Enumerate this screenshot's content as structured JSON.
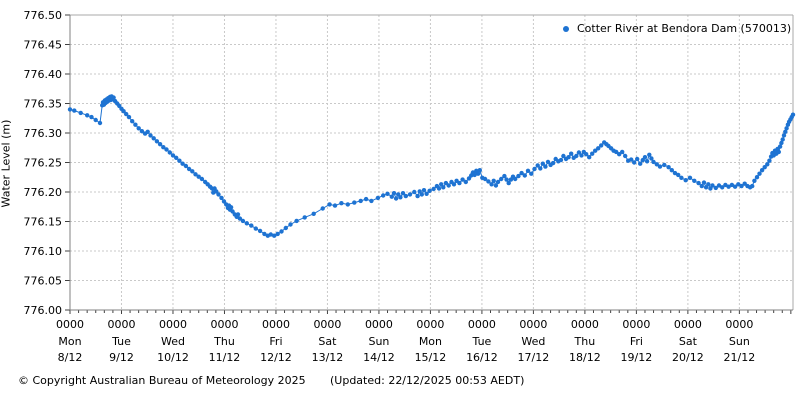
{
  "footer": {
    "copyright": "© Copyright Australian Bureau of Meteorology 2025",
    "updated": "(Updated: 22/12/2025 00:53 AEDT)"
  },
  "chart_data": {
    "type": "line",
    "title": "",
    "legend_label": "Cotter River at Bendora Dam (570013)",
    "legend_position": "top-right-inside",
    "ylabel": "Water Level (m)",
    "xlabel": "",
    "ylim": [
      776.0,
      776.5
    ],
    "ytick_step": 0.05,
    "grid": "on",
    "x_hours_max": 337,
    "x_minor_tick_hours": 4,
    "colors": {
      "series": "#1e73d2",
      "grid": "#c9c9c9",
      "axis": "#808080",
      "border": "#a8a8a8",
      "tick": "#404040"
    },
    "x_day_ticks": [
      {
        "time": "0000",
        "day": "Mon",
        "date": "8/12"
      },
      {
        "time": "0000",
        "day": "Tue",
        "date": "9/12"
      },
      {
        "time": "0000",
        "day": "Wed",
        "date": "10/12"
      },
      {
        "time": "0000",
        "day": "Thu",
        "date": "11/12"
      },
      {
        "time": "0000",
        "day": "Fri",
        "date": "12/12"
      },
      {
        "time": "0000",
        "day": "Sat",
        "date": "13/12"
      },
      {
        "time": "0000",
        "day": "Sun",
        "date": "14/12"
      },
      {
        "time": "0000",
        "day": "Mon",
        "date": "15/12"
      },
      {
        "time": "0000",
        "day": "Tue",
        "date": "16/12"
      },
      {
        "time": "0000",
        "day": "Wed",
        "date": "17/12"
      },
      {
        "time": "0000",
        "day": "Thu",
        "date": "18/12"
      },
      {
        "time": "0000",
        "day": "Fri",
        "date": "19/12"
      },
      {
        "time": "0000",
        "day": "Sat",
        "date": "20/12"
      },
      {
        "time": "0000",
        "day": "Sun",
        "date": "21/12"
      }
    ],
    "series": [
      {
        "name": "Cotter River at Bendora Dam (570013)",
        "points": [
          [
            0,
            776.34
          ],
          [
            2,
            776.338
          ],
          [
            5,
            776.334
          ],
          [
            8,
            776.33
          ],
          [
            10,
            776.327
          ],
          [
            12,
            776.322
          ],
          [
            14,
            776.317
          ],
          [
            15,
            776.347
          ],
          [
            15.4,
            776.352
          ],
          [
            15.8,
            776.348
          ],
          [
            16.2,
            776.355
          ],
          [
            16.6,
            776.351
          ],
          [
            17,
            776.357
          ],
          [
            17.4,
            776.353
          ],
          [
            17.8,
            776.359
          ],
          [
            18.2,
            776.355
          ],
          [
            18.6,
            776.361
          ],
          [
            19,
            776.356
          ],
          [
            19.4,
            776.362
          ],
          [
            19.8,
            776.357
          ],
          [
            20.3,
            776.36
          ],
          [
            21,
            776.354
          ],
          [
            22,
            776.35
          ],
          [
            23,
            776.346
          ],
          [
            24,
            776.341
          ],
          [
            25,
            776.337
          ],
          [
            26.2,
            776.332
          ],
          [
            27.5,
            776.327
          ],
          [
            29,
            776.32
          ],
          [
            30.5,
            776.314
          ],
          [
            32,
            776.308
          ],
          [
            33.5,
            776.303
          ],
          [
            35,
            776.299
          ],
          [
            36.2,
            776.302
          ],
          [
            37.5,
            776.296
          ],
          [
            39,
            776.291
          ],
          [
            40.5,
            776.286
          ],
          [
            42,
            776.281
          ],
          [
            43.5,
            776.276
          ],
          [
            45,
            776.272
          ],
          [
            46.5,
            776.267
          ],
          [
            48,
            776.262
          ],
          [
            49.5,
            776.258
          ],
          [
            51,
            776.253
          ],
          [
            52.5,
            776.248
          ],
          [
            54,
            776.244
          ],
          [
            55.5,
            776.239
          ],
          [
            57,
            776.235
          ],
          [
            58.5,
            776.23
          ],
          [
            60,
            776.226
          ],
          [
            61.5,
            776.222
          ],
          [
            63,
            776.217
          ],
          [
            64.2,
            776.213
          ],
          [
            65.3,
            776.209
          ],
          [
            66.2,
            776.206
          ],
          [
            66.8,
            776.199
          ],
          [
            67.4,
            776.206
          ],
          [
            68.2,
            776.201
          ],
          [
            69.2,
            776.196
          ],
          [
            70.6,
            776.19
          ],
          [
            71.8,
            776.184
          ],
          [
            72.8,
            776.179
          ],
          [
            73.6,
            776.173
          ],
          [
            74.1,
            776.177
          ],
          [
            74.6,
            776.17
          ],
          [
            75.1,
            776.174
          ],
          [
            75.8,
            776.167
          ],
          [
            76.8,
            776.162
          ],
          [
            77.7,
            776.158
          ],
          [
            78.3,
            776.162
          ],
          [
            79.2,
            776.155
          ],
          [
            80.6,
            776.151
          ],
          [
            82.4,
            776.147
          ],
          [
            84.5,
            776.143
          ],
          [
            86.6,
            776.138
          ],
          [
            88.6,
            776.134
          ],
          [
            90.6,
            776.129
          ],
          [
            92.2,
            776.126
          ],
          [
            93.6,
            776.128
          ],
          [
            95.2,
            776.126
          ],
          [
            96.8,
            776.129
          ],
          [
            98.6,
            776.133
          ],
          [
            100.6,
            776.139
          ],
          [
            102.8,
            776.145
          ],
          [
            105.6,
            776.151
          ],
          [
            109.4,
            776.157
          ],
          [
            113.6,
            776.163
          ],
          [
            117.8,
            776.172
          ],
          [
            121,
            776.179
          ],
          [
            123.5,
            776.177
          ],
          [
            126.5,
            776.181
          ],
          [
            129.5,
            776.179
          ],
          [
            132.5,
            776.182
          ],
          [
            135.5,
            776.185
          ],
          [
            138,
            776.188
          ],
          [
            140.5,
            776.185
          ],
          [
            143.5,
            776.19
          ],
          [
            146,
            776.194
          ],
          [
            148,
            776.197
          ],
          [
            150,
            776.192
          ],
          [
            151,
            776.198
          ],
          [
            152,
            776.189
          ],
          [
            153,
            776.196
          ],
          [
            154,
            776.191
          ],
          [
            155.2,
            776.198
          ],
          [
            156.5,
            776.193
          ],
          [
            158.5,
            776.196
          ],
          [
            160.5,
            776.2
          ],
          [
            162,
            776.193
          ],
          [
            163,
            776.201
          ],
          [
            164,
            776.196
          ],
          [
            165,
            776.203
          ],
          [
            166.2,
            776.197
          ],
          [
            167.6,
            776.202
          ],
          [
            169.5,
            776.205
          ],
          [
            171,
            776.21
          ],
          [
            172,
            776.206
          ],
          [
            173,
            776.213
          ],
          [
            174,
            776.208
          ],
          [
            175.2,
            776.215
          ],
          [
            176.5,
            776.211
          ],
          [
            177.8,
            776.217
          ],
          [
            179,
            776.213
          ],
          [
            180.2,
            776.219
          ],
          [
            181.5,
            776.215
          ],
          [
            183,
            776.221
          ],
          [
            184.5,
            776.217
          ],
          [
            186,
            776.223
          ],
          [
            187,
            776.228
          ],
          [
            187.8,
            776.233
          ],
          [
            188.6,
            776.229
          ],
          [
            189.4,
            776.236
          ],
          [
            190.2,
            776.231
          ],
          [
            191,
            776.237
          ],
          [
            192.2,
            776.224
          ],
          [
            193.5,
            776.222
          ],
          [
            195,
            776.218
          ],
          [
            196.5,
            776.213
          ],
          [
            197.5,
            776.219
          ],
          [
            198.5,
            776.211
          ],
          [
            199.5,
            776.217
          ],
          [
            201,
            776.222
          ],
          [
            202.5,
            776.227
          ],
          [
            203.5,
            776.221
          ],
          [
            204.5,
            776.215
          ],
          [
            205.5,
            776.221
          ],
          [
            206.5,
            776.226
          ],
          [
            207.5,
            776.222
          ],
          [
            209,
            776.227
          ],
          [
            210.5,
            776.232
          ],
          [
            212,
            776.228
          ],
          [
            213.5,
            776.236
          ],
          [
            215,
            776.231
          ],
          [
            216.5,
            776.239
          ],
          [
            218,
            776.245
          ],
          [
            219.2,
            776.24
          ],
          [
            220.4,
            776.248
          ],
          [
            221.6,
            776.243
          ],
          [
            222.8,
            776.251
          ],
          [
            224,
            776.246
          ],
          [
            225.2,
            776.249
          ],
          [
            226.4,
            776.256
          ],
          [
            227.6,
            776.252
          ],
          [
            228.8,
            776.254
          ],
          [
            230,
            776.261
          ],
          [
            231.2,
            776.256
          ],
          [
            232.4,
            776.259
          ],
          [
            233.6,
            776.265
          ],
          [
            234.8,
            776.258
          ],
          [
            236,
            776.261
          ],
          [
            237.2,
            776.267
          ],
          [
            238.4,
            776.262
          ],
          [
            239.5,
            776.268
          ],
          [
            240.6,
            776.264
          ],
          [
            242,
            776.259
          ],
          [
            243.4,
            776.265
          ],
          [
            244.8,
            776.27
          ],
          [
            246.2,
            776.274
          ],
          [
            247.6,
            776.279
          ],
          [
            249,
            776.284
          ],
          [
            250,
            776.281
          ],
          [
            251,
            776.278
          ],
          [
            252.2,
            776.274
          ],
          [
            253.4,
            776.27
          ],
          [
            254.6,
            776.268
          ],
          [
            256,
            776.264
          ],
          [
            257.4,
            776.268
          ],
          [
            258.8,
            776.261
          ],
          [
            260.2,
            776.253
          ],
          [
            261.6,
            776.255
          ],
          [
            263,
            776.25
          ],
          [
            264.4,
            776.256
          ],
          [
            265.8,
            776.248
          ],
          [
            267,
            776.254
          ],
          [
            268,
            776.259
          ],
          [
            269,
            776.252
          ],
          [
            270,
            776.263
          ],
          [
            271,
            776.257
          ],
          [
            272,
            776.251
          ],
          [
            273.5,
            776.247
          ],
          [
            275,
            776.243
          ],
          [
            277,
            776.246
          ],
          [
            279,
            776.242
          ],
          [
            280.5,
            776.237
          ],
          [
            282,
            776.232
          ],
          [
            283.5,
            776.229
          ],
          [
            285,
            776.224
          ],
          [
            287,
            776.22
          ],
          [
            289,
            776.224
          ],
          [
            291,
            776.219
          ],
          [
            293,
            776.215
          ],
          [
            294.5,
            776.21
          ],
          [
            295.5,
            776.216
          ],
          [
            296.5,
            776.208
          ],
          [
            297.5,
            776.213
          ],
          [
            298.5,
            776.206
          ],
          [
            299.5,
            776.211
          ],
          [
            301,
            776.207
          ],
          [
            302.5,
            776.211
          ],
          [
            304,
            776.208
          ],
          [
            305.5,
            776.212
          ],
          [
            307,
            776.209
          ],
          [
            308.5,
            776.212
          ],
          [
            310,
            776.209
          ],
          [
            311.5,
            776.213
          ],
          [
            313,
            776.21
          ],
          [
            314.5,
            776.214
          ],
          [
            315.8,
            776.21
          ],
          [
            317,
            776.208
          ],
          [
            318,
            776.21
          ],
          [
            319,
            776.219
          ],
          [
            320.2,
            776.225
          ],
          [
            321.4,
            776.231
          ],
          [
            322.6,
            776.237
          ],
          [
            323.8,
            776.242
          ],
          [
            325,
            776.247
          ],
          [
            326,
            776.253
          ],
          [
            326.8,
            776.26
          ],
          [
            327.4,
            776.266
          ],
          [
            328,
            776.262
          ],
          [
            328.6,
            776.27
          ],
          [
            329.2,
            776.265
          ],
          [
            329.8,
            776.273
          ],
          [
            330.4,
            776.268
          ],
          [
            331,
            776.277
          ],
          [
            331.6,
            776.283
          ],
          [
            332.2,
            776.289
          ],
          [
            332.8,
            776.296
          ],
          [
            333.4,
            776.302
          ],
          [
            334,
            776.308
          ],
          [
            334.6,
            776.314
          ],
          [
            335.2,
            776.319
          ],
          [
            335.8,
            776.323
          ],
          [
            336.4,
            776.327
          ],
          [
            337,
            776.331
          ]
        ]
      }
    ]
  }
}
